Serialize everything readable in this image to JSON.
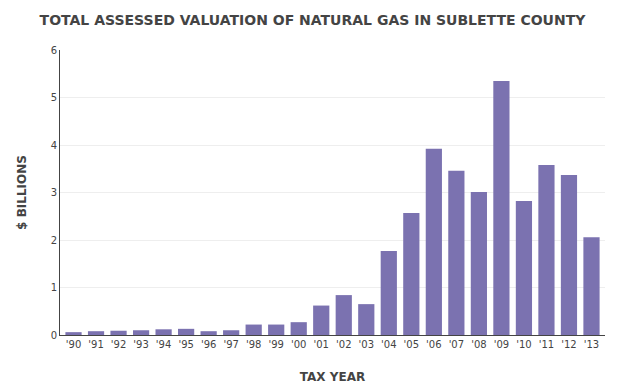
{
  "chart_data": {
    "type": "bar",
    "title": "TOTAL ASSESSED VALUATION OF NATURAL GAS IN SUBLETTE COUNTY",
    "xlabel": "TAX YEAR",
    "ylabel": "$ BILLIONS",
    "categories": [
      "'90",
      "'91",
      "'92",
      "'93",
      "'94",
      "'95",
      "'96",
      "'97",
      "'98",
      "'99",
      "'00",
      "'01",
      "'02",
      "'03",
      "'04",
      "'05",
      "'06",
      "'07",
      "'08",
      "'09",
      "'10",
      "'11",
      "'12",
      "'13"
    ],
    "values": [
      0.06,
      0.08,
      0.09,
      0.1,
      0.12,
      0.13,
      0.08,
      0.1,
      0.22,
      0.22,
      0.27,
      0.62,
      0.84,
      0.65,
      1.77,
      2.57,
      3.92,
      3.46,
      3.01,
      5.35,
      2.82,
      3.58,
      3.37,
      2.06
    ],
    "color": "#7b72b0",
    "ylim": [
      0,
      6
    ],
    "yticks": [
      0,
      1,
      2,
      3,
      4,
      5,
      6
    ],
    "grid": true
  }
}
